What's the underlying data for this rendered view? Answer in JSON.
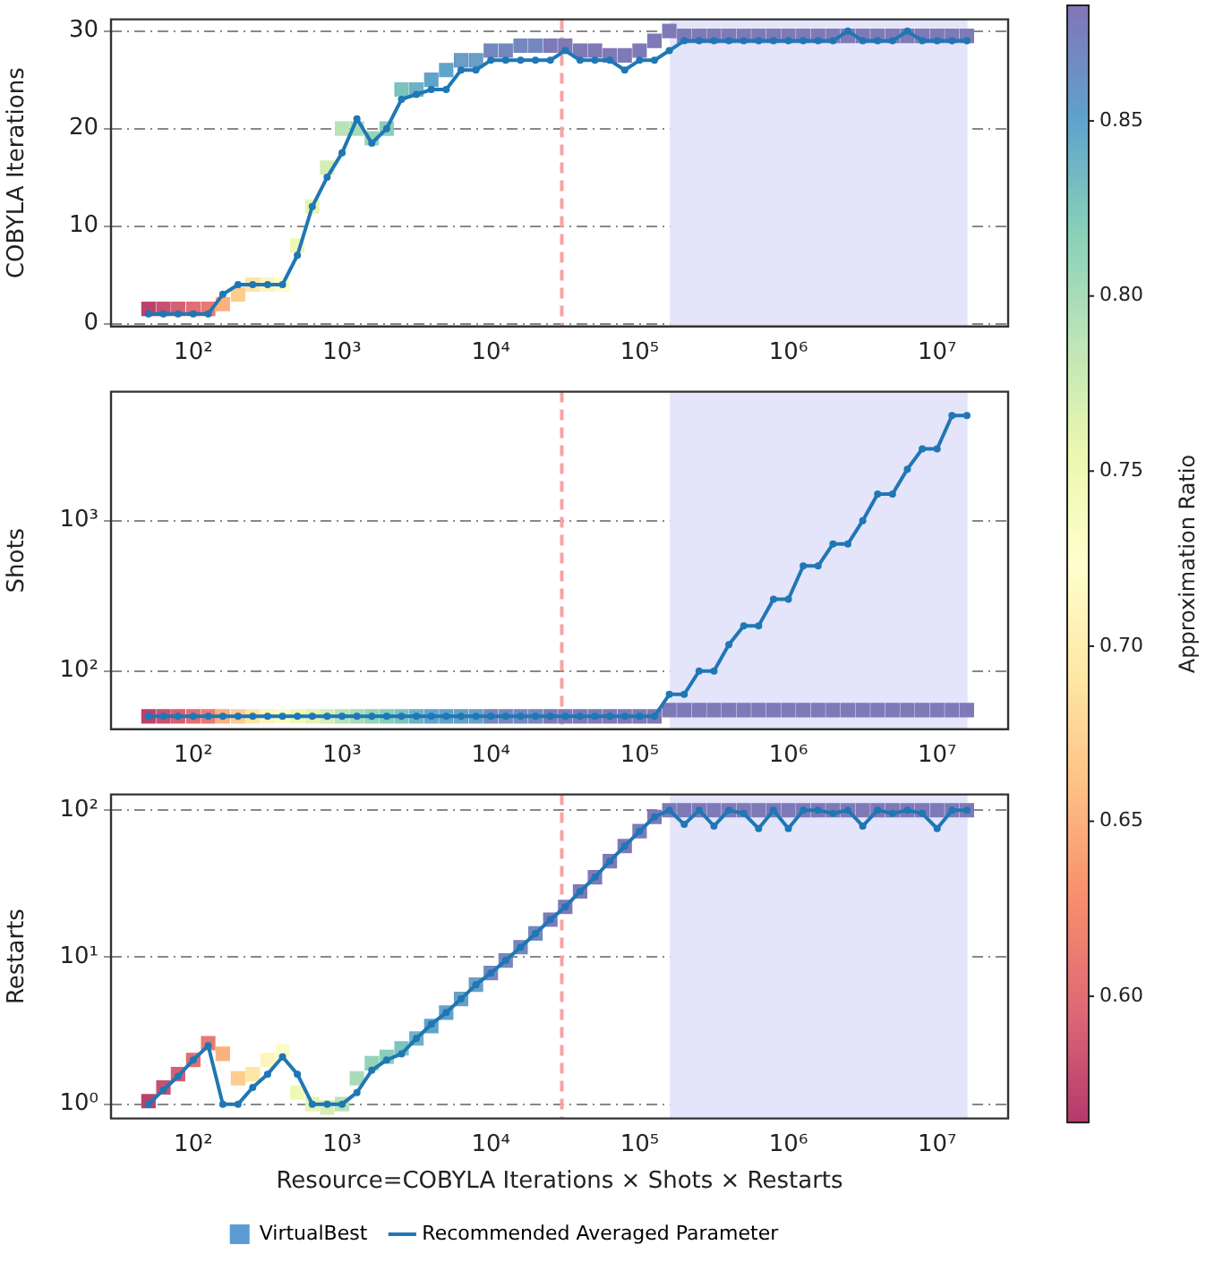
{
  "chart_data": [
    {
      "type": "line",
      "ylabel": "COBYLA Iterations",
      "log": "x",
      "grid": "y",
      "legend": false,
      "clim": [
        0.564,
        0.883
      ],
      "cticks": [
        {
          "value": 0.6,
          "label": "0.60"
        },
        {
          "value": 0.65,
          "label": "0.65"
        },
        {
          "value": 0.7,
          "label": "0.70"
        },
        {
          "value": 0.75,
          "label": "0.75"
        },
        {
          "value": 0.8,
          "label": "0.80"
        },
        {
          "value": 0.85,
          "label": "0.85"
        }
      ],
      "clabel": "Approximation Ratio",
      "xlim": [
        28,
        30000000
      ],
      "xticks": [
        {
          "value": 100,
          "label": "10²"
        },
        {
          "value": 1000,
          "label": "10³"
        },
        {
          "value": 10000,
          "label": "10⁴"
        },
        {
          "value": 100000,
          "label": "10⁵"
        },
        {
          "value": 1000000,
          "label": "10⁶"
        },
        {
          "value": 10000000,
          "label": "10⁷"
        }
      ],
      "ylim": [
        -0.3,
        31.2
      ],
      "yticks": [
        0,
        10,
        20,
        30
      ],
      "x": [
        50,
        63,
        79,
        100,
        126,
        158,
        200,
        251,
        316,
        398,
        501,
        631,
        794,
        1000,
        1259,
        1585,
        1995,
        2512,
        3162,
        3981,
        5012,
        6310,
        7943,
        10000,
        12589,
        15849,
        19953,
        25119,
        31623,
        39811,
        50119,
        63096,
        79433,
        100000,
        125893,
        158489,
        199526,
        251189,
        316228,
        398107,
        501187,
        630957,
        794328,
        1000000,
        1258925,
        1584893,
        1995262,
        2511886,
        3162278,
        3981072,
        5011872,
        6309573,
        7943282,
        10000000,
        12589254,
        15848932
      ],
      "ref_lines": [
        {
          "axis": "x",
          "value": 30000,
          "color": "#f7a3a3",
          "line_style": "dashed"
        }
      ],
      "bands": [
        {
          "axis": "x",
          "from": 160000,
          "to": 16000000,
          "color": "#e4e4fb"
        }
      ],
      "series": [
        {
          "type": "line",
          "marker": "circle",
          "color": "#1f77b4",
          "values": [
            1,
            1,
            1,
            1,
            1,
            3,
            4,
            4,
            4,
            4,
            7,
            12,
            15,
            17.5,
            21,
            18.5,
            20,
            23,
            23.5,
            24,
            24,
            26,
            26,
            27,
            27,
            27,
            27,
            27,
            28,
            27,
            27,
            27,
            26,
            27,
            27,
            28,
            29,
            29,
            29,
            29,
            29,
            29,
            29,
            29,
            29,
            29,
            29,
            30,
            29,
            29,
            29,
            30,
            29,
            29,
            29,
            29
          ]
        },
        {
          "type": "scatter",
          "marker": "square",
          "colors": [
            "#bb426d",
            "#c85070",
            "#d65f74",
            "#e16d75",
            "#e97972",
            "#fbb17d",
            "#fdcc8f",
            "#fee6a3",
            "#fff5bc",
            "#fbfdc7",
            "#eff9b5",
            "#e4f4b0",
            "#d4eeb4",
            "#b9e2b8",
            "#a8dcb9",
            "#93d4b9",
            "#87ceba",
            "#7ac4c0",
            "#6db2c5",
            "#60a3ca",
            "#60a3ca",
            "#699fc5",
            "#699fc5",
            "#7388bf",
            "#7388bf",
            "#7388bf",
            "#7388bf",
            "#7e7ab8",
            "#7e7ab8",
            "#7e7ab8",
            "#7e7ab8",
            "#7e7ab8",
            "#7e7ab8",
            "#7e7ab8",
            "#7e7ab8",
            "#7e7ab8",
            "#7e7ab8",
            "#7e7ab8",
            "#7e7ab8",
            "#7e7ab8",
            "#7e7ab8",
            "#7e7ab8",
            "#7e7ab8",
            "#7e7ab8",
            "#7e7ab8",
            "#7e7ab8",
            "#7e7ab8",
            "#7e7ab8",
            "#7e7ab8",
            "#7e7ab8",
            "#7e7ab8",
            "#7e7ab8",
            "#7e7ab8",
            "#7e7ab8",
            "#7e7ab8",
            "#7e7ab8"
          ],
          "values": [
            1.5,
            1.5,
            1.5,
            1.5,
            1.5,
            2,
            3,
            4,
            4,
            4,
            8,
            12,
            16,
            20,
            20,
            19,
            20,
            24,
            24,
            25,
            26,
            27,
            27,
            28,
            28,
            28.5,
            28.5,
            28.5,
            28.5,
            28,
            28,
            27.5,
            27.5,
            28,
            29,
            30,
            29.5,
            29.5,
            29.5,
            29.5,
            29.5,
            29.5,
            29.5,
            29.5,
            29.5,
            29.5,
            29.5,
            29.5,
            29.5,
            29.5,
            29.5,
            29.5,
            29.5,
            29.5,
            29.5,
            29.5
          ],
          "cvalues": [
            0.57,
            0.58,
            0.59,
            0.6,
            0.61,
            0.65,
            0.67,
            0.69,
            0.71,
            0.73,
            0.75,
            0.76,
            0.77,
            0.79,
            0.8,
            0.81,
            0.82,
            0.83,
            0.84,
            0.85,
            0.85,
            0.86,
            0.86,
            0.87,
            0.87,
            0.87,
            0.87,
            0.88,
            0.88,
            0.88,
            0.88,
            0.88,
            0.88,
            0.88,
            0.88,
            0.88,
            0.88,
            0.88,
            0.88,
            0.88,
            0.88,
            0.88,
            0.88,
            0.88,
            0.88,
            0.88,
            0.88,
            0.88,
            0.88,
            0.88,
            0.88,
            0.88,
            0.88,
            0.88,
            0.88,
            0.88
          ]
        }
      ]
    },
    {
      "type": "line",
      "ylabel": "Shots",
      "log": "xy",
      "grid": "y",
      "legend": false,
      "xlim": [
        28,
        30000000
      ],
      "xticks": [
        {
          "value": 100,
          "label": "10²"
        },
        {
          "value": 1000,
          "label": "10³"
        },
        {
          "value": 10000,
          "label": "10⁴"
        },
        {
          "value": 100000,
          "label": "10⁵"
        },
        {
          "value": 1000000,
          "label": "10⁶"
        },
        {
          "value": 10000000,
          "label": "10⁷"
        }
      ],
      "ylim": [
        41,
        7200
      ],
      "yticks": [
        {
          "value": 100,
          "label": "10²"
        },
        {
          "value": 1000,
          "label": "10³"
        }
      ],
      "x": [
        50,
        63,
        79,
        100,
        126,
        158,
        200,
        251,
        316,
        398,
        501,
        631,
        794,
        1000,
        1259,
        1585,
        1995,
        2512,
        3162,
        3981,
        5012,
        6310,
        7943,
        10000,
        12589,
        15849,
        19953,
        25119,
        31623,
        39811,
        50119,
        63096,
        79433,
        100000,
        125893,
        158489,
        199526,
        251189,
        316228,
        398107,
        501187,
        630957,
        794328,
        1000000,
        1258925,
        1584893,
        1995262,
        2511886,
        3162278,
        3981072,
        5011872,
        6309573,
        7943282,
        10000000,
        12589254,
        15848932
      ],
      "ref_lines": [
        {
          "axis": "x",
          "value": 30000,
          "color": "#f7a3a3",
          "line_style": "dashed"
        }
      ],
      "bands": [
        {
          "axis": "x",
          "from": 160000,
          "to": 16000000,
          "color": "#e4e4fb"
        }
      ],
      "series": [
        {
          "type": "line",
          "marker": "circle",
          "color": "#1f77b4",
          "values": [
            50,
            50,
            50,
            50,
            50,
            50,
            50,
            50,
            50,
            50,
            50,
            50,
            50,
            50,
            50,
            50,
            50,
            50,
            50,
            50,
            50,
            50,
            50,
            50,
            50,
            50,
            50,
            50,
            50,
            50,
            50,
            50,
            50,
            50,
            50,
            70,
            70,
            100,
            100,
            150,
            200,
            200,
            300,
            300,
            500,
            500,
            700,
            700,
            1000,
            1500,
            1500,
            2200,
            3000,
            3000,
            5000,
            5000
          ]
        },
        {
          "type": "scatter",
          "marker": "square",
          "values": [
            50,
            50,
            50,
            50,
            50,
            50,
            50,
            50,
            50,
            50,
            50,
            50,
            50,
            50,
            50,
            50,
            50,
            50,
            50,
            50,
            50,
            50,
            50,
            50,
            50,
            50,
            50,
            50,
            50,
            50,
            50,
            50,
            50,
            50,
            50,
            55,
            55,
            55,
            55,
            55,
            55,
            55,
            55,
            55,
            55,
            55,
            55,
            55,
            55,
            55,
            55,
            55,
            55,
            55,
            55,
            55
          ],
          "colors": [
            "#bb426d",
            "#c85070",
            "#d65f74",
            "#e16d75",
            "#e97972",
            "#fbb17d",
            "#fdcc8f",
            "#fee6a3",
            "#fff5bc",
            "#fbfdc7",
            "#eff9b5",
            "#e4f4b0",
            "#d4eeb4",
            "#b9e2b8",
            "#a8dcb9",
            "#93d4b9",
            "#87ceba",
            "#7ac4c0",
            "#6db2c5",
            "#60a3ca",
            "#60a3ca",
            "#699fc5",
            "#699fc5",
            "#7388bf",
            "#7388bf",
            "#7388bf",
            "#7388bf",
            "#7e7ab8",
            "#7e7ab8",
            "#7e7ab8",
            "#7e7ab8",
            "#7e7ab8",
            "#7e7ab8",
            "#7e7ab8",
            "#7e7ab8",
            "#7e7ab8",
            "#7e7ab8",
            "#7e7ab8",
            "#7e7ab8",
            "#7e7ab8",
            "#7e7ab8",
            "#7e7ab8",
            "#7e7ab8",
            "#7e7ab8",
            "#7e7ab8",
            "#7e7ab8",
            "#7e7ab8",
            "#7e7ab8",
            "#7e7ab8",
            "#7e7ab8",
            "#7e7ab8",
            "#7e7ab8",
            "#7e7ab8",
            "#7e7ab8",
            "#7e7ab8",
            "#7e7ab8"
          ]
        }
      ]
    },
    {
      "type": "line",
      "ylabel": "Restarts",
      "xlabel": "Resource=COBYLA Iterations × Shots × Restarts",
      "log": "xy",
      "grid": "y",
      "legend": "bottom",
      "xlim": [
        28,
        30000000
      ],
      "xticks": [
        {
          "value": 100,
          "label": "10²"
        },
        {
          "value": 1000,
          "label": "10³"
        },
        {
          "value": 10000,
          "label": "10⁴"
        },
        {
          "value": 100000,
          "label": "10⁵"
        },
        {
          "value": 1000000,
          "label": "10⁶"
        },
        {
          "value": 10000000,
          "label": "10⁷"
        }
      ],
      "ylim": [
        0.8,
        128
      ],
      "yticks": [
        {
          "value": 1,
          "label": "10⁰"
        },
        {
          "value": 10,
          "label": "10¹"
        },
        {
          "value": 100,
          "label": "10²"
        }
      ],
      "x": [
        50,
        63,
        79,
        100,
        126,
        158,
        200,
        251,
        316,
        398,
        501,
        631,
        794,
        1000,
        1259,
        1585,
        1995,
        2512,
        3162,
        3981,
        5012,
        6310,
        7943,
        10000,
        12589,
        15849,
        19953,
        25119,
        31623,
        39811,
        50119,
        63096,
        79433,
        100000,
        125893,
        158489,
        199526,
        251189,
        316228,
        398107,
        501187,
        630957,
        794328,
        1000000,
        1258925,
        1584893,
        1995262,
        2511886,
        3162278,
        3981072,
        5011872,
        6309573,
        7943282,
        10000000,
        12589254,
        15848932
      ],
      "ref_lines": [
        {
          "axis": "x",
          "value": 30000,
          "color": "#f7a3a3",
          "line_style": "dashed"
        }
      ],
      "bands": [
        {
          "axis": "x",
          "from": 160000,
          "to": 16000000,
          "color": "#e4e4fb"
        }
      ],
      "series": [
        {
          "type": "line",
          "name": "Recommended Averaged Parameter",
          "marker": "circle",
          "color": "#1f77b4",
          "values": [
            1.0,
            1.25,
            1.55,
            2.0,
            2.5,
            1.0,
            1.0,
            1.3,
            1.6,
            2.1,
            1.6,
            1.0,
            1.0,
            1.0,
            1.2,
            1.7,
            2.0,
            2.2,
            2.8,
            3.5,
            4.2,
            5.2,
            6.5,
            7.8,
            9.5,
            11.7,
            14.5,
            18,
            22,
            28,
            35,
            45,
            57,
            72,
            90,
            100,
            80,
            100,
            78,
            100,
            95,
            75,
            100,
            75,
            100,
            100,
            95,
            100,
            78,
            100,
            95,
            100,
            95,
            75,
            100,
            100
          ]
        },
        {
          "type": "scatter",
          "name": "VirtualBest",
          "marker": "square",
          "color": "#5a9bd4",
          "values": [
            1.05,
            1.3,
            1.6,
            2.0,
            2.6,
            2.2,
            1.5,
            1.6,
            2.0,
            2.3,
            1.2,
            1.0,
            0.95,
            1.0,
            1.5,
            1.9,
            2.1,
            2.4,
            2.8,
            3.4,
            4.2,
            5.2,
            6.5,
            7.8,
            9.5,
            11.7,
            14.5,
            18,
            22,
            28,
            35,
            45,
            57,
            72,
            90,
            100,
            100,
            100,
            100,
            100,
            100,
            100,
            100,
            100,
            100,
            100,
            100,
            100,
            100,
            100,
            100,
            100,
            100,
            100,
            100,
            100
          ],
          "colors": [
            "#bb426d",
            "#c85070",
            "#d65f74",
            "#e16d75",
            "#e97972",
            "#fbb17d",
            "#fdcc8f",
            "#fee6a3",
            "#fff5bc",
            "#fbfdc7",
            "#eff9b5",
            "#e4f4b0",
            "#d4eeb4",
            "#b9e2b8",
            "#a8dcb9",
            "#93d4b9",
            "#87ceba",
            "#7ac4c0",
            "#6db2c5",
            "#60a3ca",
            "#60a3ca",
            "#699fc5",
            "#699fc5",
            "#7388bf",
            "#7388bf",
            "#7388bf",
            "#7388bf",
            "#7e7ab8",
            "#7e7ab8",
            "#7e7ab8",
            "#7e7ab8",
            "#7e7ab8",
            "#7e7ab8",
            "#7e7ab8",
            "#7e7ab8",
            "#7e7ab8",
            "#7e7ab8",
            "#7e7ab8",
            "#7e7ab8",
            "#7e7ab8",
            "#7e7ab8",
            "#7e7ab8",
            "#7e7ab8",
            "#7e7ab8",
            "#7e7ab8",
            "#7e7ab8",
            "#7e7ab8",
            "#7e7ab8",
            "#7e7ab8",
            "#7e7ab8",
            "#7e7ab8",
            "#7e7ab8",
            "#7e7ab8",
            "#7e7ab8",
            "#7e7ab8",
            "#7e7ab8"
          ]
        }
      ]
    }
  ]
}
